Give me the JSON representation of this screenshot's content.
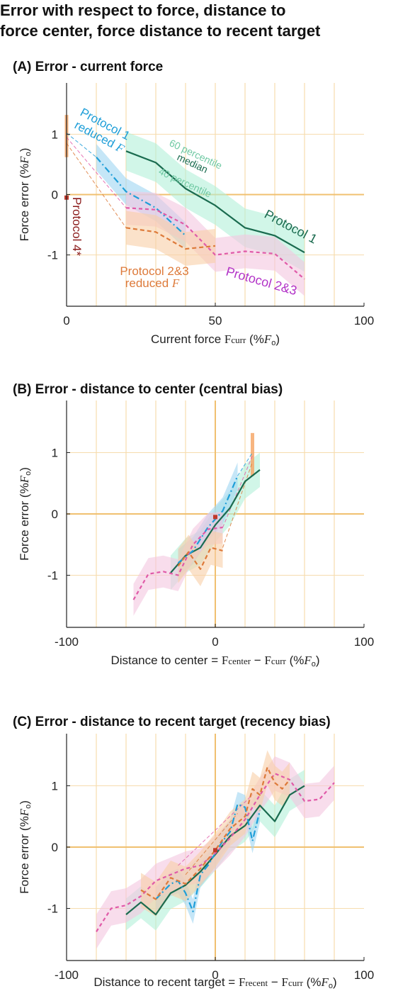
{
  "figure": {
    "title_line1": "Error with respect to force, distance to",
    "title_line2": " force center, force distance to recent target"
  },
  "colors": {
    "protocol1": "#1a6b4f",
    "protocol1_band": "#b3f0d8",
    "protocol1_reduced": "#1e9ed8",
    "protocol1_reduced_band": "#9fd6f2",
    "protocol23": "#e05aa8",
    "protocol23_band": "#f4c6df",
    "protocol23_reduced": "#dd7a3a",
    "protocol23_reduced_band": "#f9cfa6",
    "protocol4": "#c0392b",
    "protocol4_band": "#f6a86a",
    "grid": "#f6dcae",
    "zero_line": "#f0c070",
    "percentile_text": "#6fc9a3",
    "protocol23_text": "#b233c7"
  },
  "chart_data": [
    {
      "panel": "A",
      "type": "line",
      "title": "(A) Error - current force",
      "xlabel": "Current force Fcurr (%Fo)",
      "xlabel_parts": {
        "pre": "Current force ",
        "var": "F",
        "sub": "curr",
        "post": " (%",
        "unit": "F",
        "unitsub": "o",
        "close": ")"
      },
      "ylabel": "Force error (%Fo)",
      "xlim": [
        0,
        100
      ],
      "ylim": [
        -1.85,
        1.85
      ],
      "xticks": [
        0,
        50,
        100
      ],
      "xtick_labels": [
        "0",
        "50",
        "100"
      ],
      "yticks": [
        1,
        0,
        -1
      ],
      "ytick_labels": [
        "1",
        "0",
        "-1"
      ],
      "xgrid": [
        10,
        20,
        30,
        40,
        50,
        60,
        70,
        80,
        90
      ],
      "series": [
        {
          "key": "protocol1",
          "x": [
            20,
            30,
            40,
            50,
            60,
            70,
            80
          ],
          "y": [
            0.72,
            0.53,
            0.1,
            -0.18,
            -0.55,
            -0.68,
            -0.96
          ],
          "band": 0.32,
          "dash": ""
        },
        {
          "key": "protocol1_reduced",
          "x": [
            10,
            20,
            30,
            40
          ],
          "y": [
            0.62,
            0.05,
            -0.22,
            -0.68
          ],
          "band": 0.22,
          "dash": "9,4,2,4"
        },
        {
          "key": "protocol23",
          "x": [
            20,
            30,
            40,
            50,
            60,
            70,
            80
          ],
          "y": [
            -0.22,
            -0.25,
            -0.5,
            -1.0,
            -0.94,
            -0.98,
            -1.4
          ],
          "band": 0.28,
          "dash": "5,4"
        },
        {
          "key": "protocol23_reduced",
          "x": [
            20,
            30,
            40,
            50
          ],
          "y": [
            -0.55,
            -0.62,
            -0.9,
            -0.85
          ],
          "band": 0.28,
          "dash": "6,4"
        }
      ],
      "connectors": [
        {
          "color": "#e05aa8",
          "x": [
            0,
            20
          ],
          "y": [
            0.95,
            -0.22
          ]
        },
        {
          "color": "#dd7a3a",
          "x": [
            0,
            20
          ],
          "y": [
            0.85,
            -0.55
          ]
        },
        {
          "color": "#1e9ed8",
          "x": [
            0,
            10
          ],
          "y": [
            1.02,
            0.62
          ]
        }
      ],
      "protocol4": {
        "x": 0,
        "y": -0.05,
        "band_low": 0.62,
        "band_high": 1.32
      },
      "annotations": {
        "protocol1_reduced_line1": "Protocol 1",
        "protocol1_reduced_line2": "reduced",
        "reduced_var": "F",
        "percentile_60": "60 percentile",
        "median": "median",
        "percentile_40": "40 percentile",
        "protocol1": "Protocol 1",
        "protocol4": "Protocol 4*",
        "protocol23_reduced_line1": "Protocol 2&3",
        "protocol23_reduced_line2": "reduced",
        "protocol23": "Protocol 2&3"
      }
    },
    {
      "panel": "B",
      "type": "line",
      "title": "(B) Error - distance to center (central bias)",
      "xlabel": "Distance to center = Fcenter − Fcurr (%Fo)",
      "xlabel_parts": {
        "pre": "Distance to center = ",
        "var1": "F",
        "sub1": "center",
        "mid": " − ",
        "var2": "F",
        "sub2": "curr",
        "post": " (%",
        "unit": "F",
        "unitsub": "o",
        "close": ")"
      },
      "ylabel": "Force error (%Fo)",
      "xlim": [
        -100,
        100
      ],
      "ylim": [
        -1.85,
        1.85
      ],
      "xticks": [
        -100,
        0,
        100
      ],
      "xtick_labels": [
        "-100",
        "0",
        "100"
      ],
      "yticks": [
        1,
        0,
        -1
      ],
      "ytick_labels": [
        "1",
        "0",
        "-1"
      ],
      "xgrid": [
        -80,
        -60,
        -40,
        -20,
        20,
        40,
        60,
        80
      ],
      "series": [
        {
          "key": "protocol1",
          "x": [
            -30,
            -20,
            -10,
            0,
            10,
            20,
            30
          ],
          "y": [
            -0.96,
            -0.68,
            -0.55,
            -0.18,
            0.1,
            0.53,
            0.72
          ],
          "band": 0.28,
          "dash": ""
        },
        {
          "key": "protocol1_reduced",
          "x": [
            -25,
            -15,
            -5,
            5,
            15
          ],
          "y": [
            -0.8,
            -0.6,
            -0.22,
            0.05,
            0.62
          ],
          "band": 0.22,
          "dash": "9,4,2,4"
        },
        {
          "key": "protocol23",
          "x": [
            -55,
            -45,
            -35,
            -25,
            -15,
            -5,
            5
          ],
          "y": [
            -1.4,
            -0.98,
            -0.94,
            -1.0,
            -0.5,
            -0.25,
            -0.22
          ],
          "band": 0.26,
          "dash": "5,4"
        },
        {
          "key": "protocol23_reduced",
          "x": [
            -25,
            -18,
            -10,
            -3,
            5
          ],
          "y": [
            -0.85,
            -0.62,
            -0.9,
            -0.55,
            -0.6
          ],
          "band": 0.28,
          "dash": "6,4"
        }
      ],
      "connectors": [
        {
          "color": "#e05aa8",
          "x": [
            5,
            25
          ],
          "y": [
            -0.22,
            0.95
          ]
        },
        {
          "color": "#dd7a3a",
          "x": [
            5,
            25
          ],
          "y": [
            -0.55,
            0.85
          ]
        },
        {
          "color": "#1e9ed8",
          "x": [
            15,
            25
          ],
          "y": [
            0.62,
            1.0
          ]
        }
      ],
      "protocol4": {
        "x": 0,
        "y": -0.05,
        "band_x": 25,
        "band_low": 0.62,
        "band_high": 1.32
      }
    },
    {
      "panel": "C",
      "type": "line",
      "title": "(C) Error - distance to recent target (recency bias)",
      "xlabel": "Distance to recent target = Frecent − Fcurr (%Fo)",
      "xlabel_parts": {
        "pre": "Distance to recent target = ",
        "var1": "F",
        "sub1": "recent",
        "mid": " − ",
        "var2": "F",
        "sub2": "curr",
        "post": " (%",
        "unit": "F",
        "unitsub": "o",
        "close": ")"
      },
      "ylabel": "Force error (%Fo)",
      "xlim": [
        -100,
        100
      ],
      "ylim": [
        -1.85,
        1.85
      ],
      "xticks": [
        -100,
        0,
        100
      ],
      "xtick_labels": [
        "-100",
        "0",
        "100"
      ],
      "yticks": [
        1,
        0,
        -1
      ],
      "ytick_labels": [
        "1",
        "0",
        "-1"
      ],
      "xgrid": [
        -80,
        -60,
        -40,
        -20,
        20,
        40,
        60,
        80
      ],
      "series": [
        {
          "key": "protocol1",
          "x": [
            -60,
            -50,
            -40,
            -30,
            -20,
            -10,
            0,
            10,
            20,
            30,
            40,
            50,
            60
          ],
          "y": [
            -1.1,
            -0.9,
            -1.1,
            -0.75,
            -0.62,
            -0.4,
            -0.12,
            0.18,
            0.35,
            0.68,
            0.42,
            0.85,
            1.0
          ],
          "band": 0.26,
          "dash": ""
        },
        {
          "key": "protocol1_reduced",
          "x": [
            -40,
            -30,
            -25,
            -20,
            -15,
            -10,
            -5,
            0,
            5,
            10,
            15,
            20,
            25,
            30
          ],
          "y": [
            -0.85,
            -0.6,
            -0.55,
            -0.75,
            -1.05,
            -0.45,
            -0.3,
            -0.1,
            0.1,
            0.25,
            0.7,
            0.65,
            0.1,
            0.6
          ],
          "band": 0.2,
          "dash": "9,4,2,4"
        },
        {
          "key": "protocol23",
          "x": [
            -80,
            -70,
            -60,
            -50,
            -40,
            -30,
            -20,
            -10,
            0,
            10,
            20,
            30,
            40,
            50,
            60,
            70,
            80
          ],
          "y": [
            -1.38,
            -1.0,
            -0.95,
            -0.8,
            -0.55,
            -0.45,
            -0.35,
            -0.3,
            -0.1,
            0.15,
            0.45,
            0.85,
            1.2,
            1.1,
            0.75,
            0.78,
            1.05
          ],
          "band": 0.28,
          "dash": "5,4"
        },
        {
          "key": "protocol23_reduced",
          "x": [
            -50,
            -40,
            -30,
            -20,
            -10,
            0,
            10,
            20,
            25,
            30,
            35,
            40,
            45,
            50
          ],
          "y": [
            -0.7,
            -0.85,
            -0.5,
            -0.6,
            -0.35,
            -0.05,
            0.3,
            0.5,
            0.95,
            0.85,
            1.3,
            1.05,
            0.95,
            1.1
          ],
          "band": 0.28,
          "dash": "6,4"
        }
      ],
      "connectors": [
        {
          "color": "#e05aa8",
          "x": [
            -25,
            25
          ],
          "y": [
            -0.3,
            0.85
          ]
        },
        {
          "color": "#dd7a3a",
          "x": [
            -20,
            15
          ],
          "y": [
            -0.45,
            0.55
          ]
        }
      ],
      "protocol4": {
        "x": 0,
        "y": -0.05
      }
    }
  ]
}
